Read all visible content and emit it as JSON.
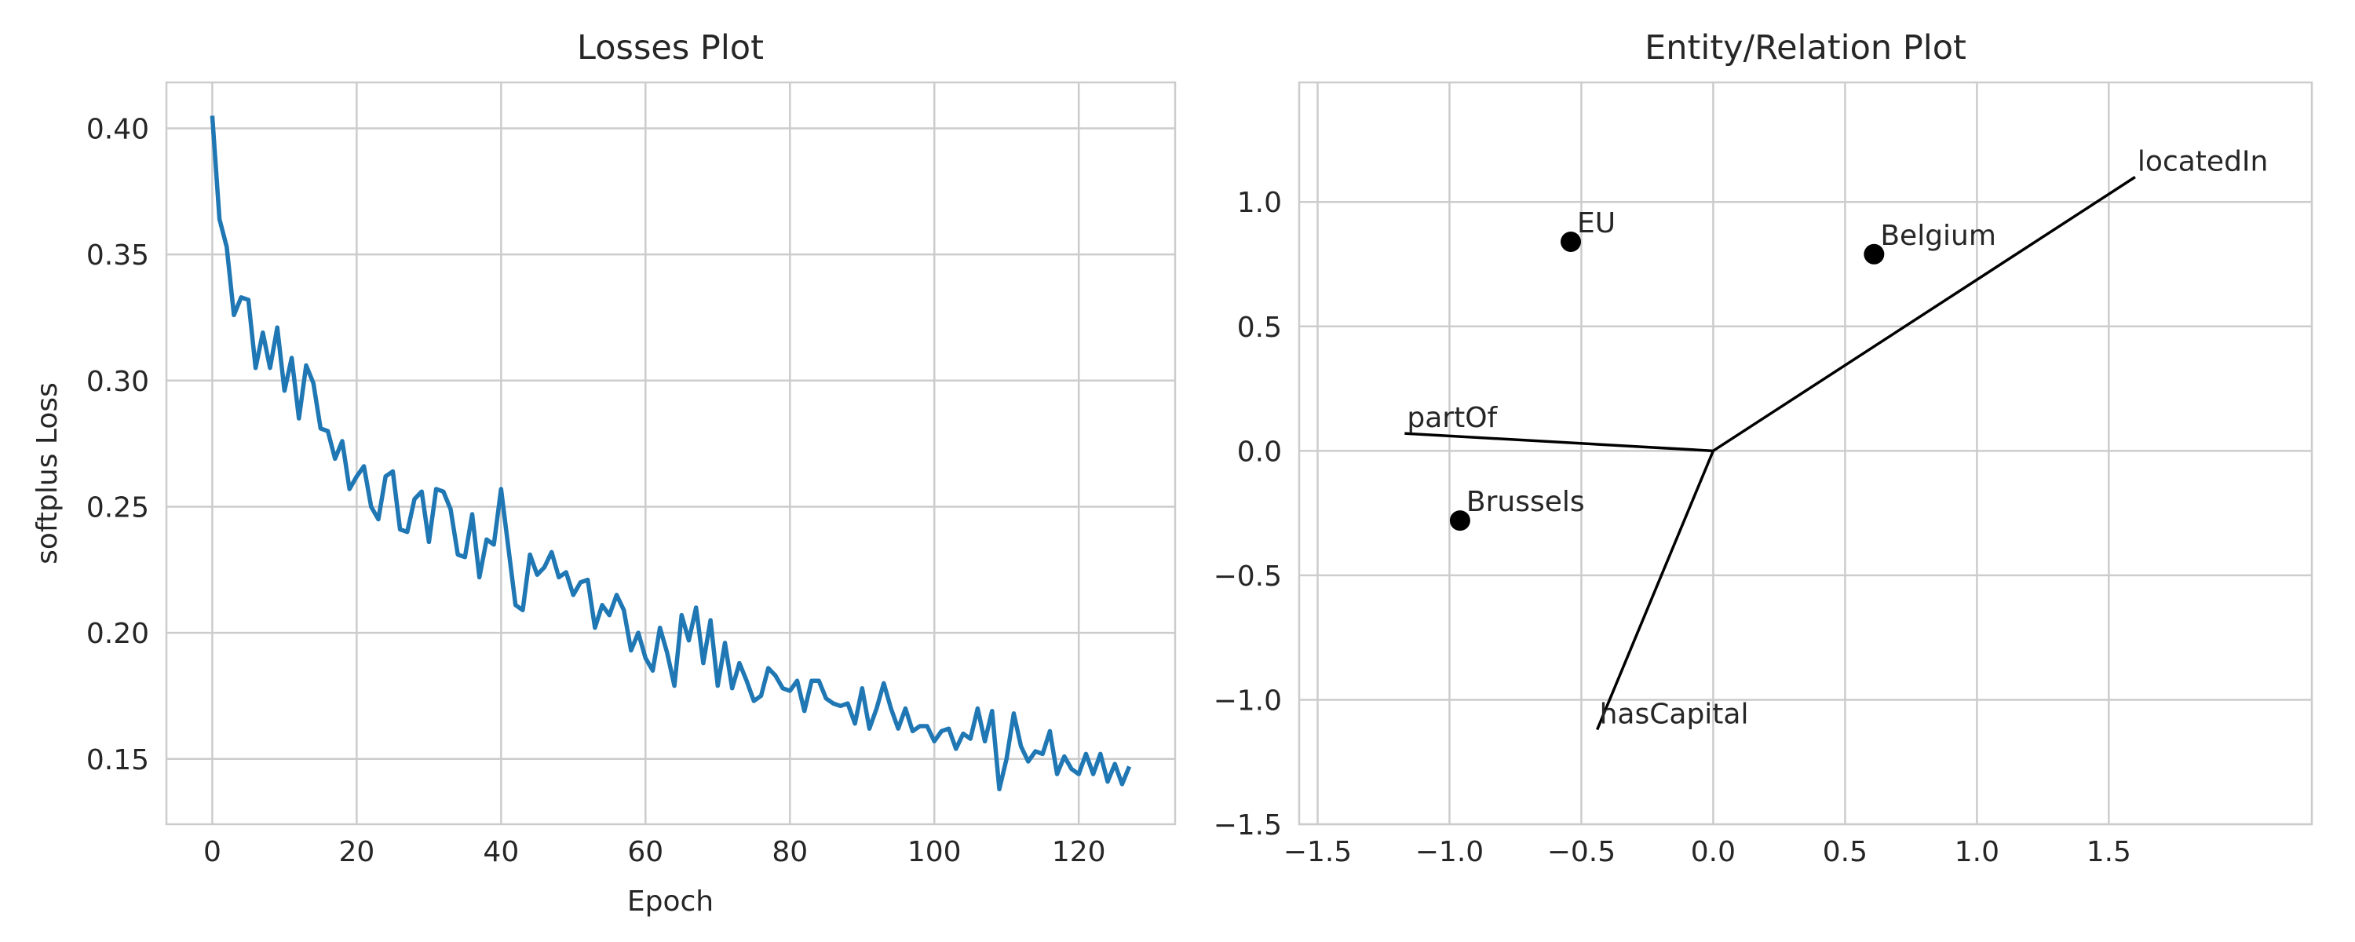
{
  "colors": {
    "loss_line": "#1f77b4",
    "relation_line": "#000000",
    "entity_point": "#000000",
    "grid": "#cccccc"
  },
  "chart_data": [
    {
      "type": "line",
      "title": "Losses Plot",
      "xlabel": "Epoch",
      "ylabel": "softplus Loss",
      "grid": true,
      "xlim": [
        -6.35,
        133.35
      ],
      "ylim": [
        0.1241,
        0.4182
      ],
      "x_ticks": [
        0,
        20,
        40,
        60,
        80,
        100,
        120
      ],
      "x_tick_labels": [
        "0",
        "20",
        "40",
        "60",
        "80",
        "100",
        "120"
      ],
      "y_ticks": [
        0.15,
        0.2,
        0.25,
        0.3,
        0.35,
        0.4
      ],
      "y_tick_labels": [
        "0.15",
        "0.20",
        "0.25",
        "0.30",
        "0.35",
        "0.40"
      ],
      "series": [
        {
          "values": [
            0.405,
            0.364,
            0.353,
            0.326,
            0.333,
            0.332,
            0.305,
            0.319,
            0.305,
            0.321,
            0.296,
            0.309,
            0.285,
            0.306,
            0.299,
            0.281,
            0.28,
            0.269,
            0.276,
            0.257,
            0.262,
            0.266,
            0.25,
            0.245,
            0.262,
            0.264,
            0.241,
            0.24,
            0.253,
            0.256,
            0.236,
            0.257,
            0.256,
            0.249,
            0.231,
            0.23,
            0.247,
            0.222,
            0.237,
            0.235,
            0.257,
            0.234,
            0.211,
            0.209,
            0.231,
            0.223,
            0.226,
            0.232,
            0.222,
            0.224,
            0.215,
            0.22,
            0.221,
            0.202,
            0.211,
            0.207,
            0.215,
            0.209,
            0.193,
            0.2,
            0.19,
            0.185,
            0.202,
            0.192,
            0.179,
            0.207,
            0.197,
            0.21,
            0.188,
            0.205,
            0.179,
            0.196,
            0.178,
            0.188,
            0.181,
            0.173,
            0.175,
            0.186,
            0.183,
            0.178,
            0.177,
            0.181,
            0.169,
            0.181,
            0.181,
            0.174,
            0.172,
            0.171,
            0.172,
            0.164,
            0.178,
            0.162,
            0.17,
            0.18,
            0.17,
            0.162,
            0.17,
            0.161,
            0.163,
            0.163,
            0.157,
            0.161,
            0.162,
            0.154,
            0.16,
            0.158,
            0.17,
            0.157,
            0.169,
            0.138,
            0.15,
            0.168,
            0.155,
            0.149,
            0.153,
            0.152,
            0.161,
            0.144,
            0.151,
            0.146,
            0.144,
            0.152,
            0.144,
            0.152,
            0.141,
            0.148,
            0.14,
            0.147
          ]
        }
      ]
    },
    {
      "type": "scatter",
      "title": "Entity/Relation Plot",
      "xlabel": "",
      "ylabel": "",
      "grid": true,
      "xlim": [
        -1.57,
        2.27
      ],
      "ylim": [
        -1.5,
        1.48
      ],
      "x_ticks": [
        -1.5,
        -1.0,
        -0.5,
        0.0,
        0.5,
        1.0,
        1.5
      ],
      "x_tick_labels": [
        "−1.5",
        "−1.0",
        "−0.5",
        "0.0",
        "0.5",
        "1.0",
        "1.5"
      ],
      "y_ticks": [
        -1.5,
        -1.0,
        -0.5,
        0.0,
        0.5,
        1.0
      ],
      "y_tick_labels": [
        "−1.5",
        "−1.0",
        "−0.5",
        "0.0",
        "0.5",
        "1.0"
      ],
      "points": [
        {
          "label": "EU",
          "x": -0.54,
          "y": 0.84
        },
        {
          "label": "Belgium",
          "x": 0.61,
          "y": 0.79
        },
        {
          "label": "Brussels",
          "x": -0.96,
          "y": -0.28
        }
      ],
      "relations": [
        {
          "label": "locatedIn",
          "x": 1.6,
          "y": 1.1
        },
        {
          "label": "partOf",
          "x": -1.17,
          "y": 0.07
        },
        {
          "label": "hasCapital",
          "x": -0.44,
          "y": -1.12
        }
      ]
    }
  ]
}
